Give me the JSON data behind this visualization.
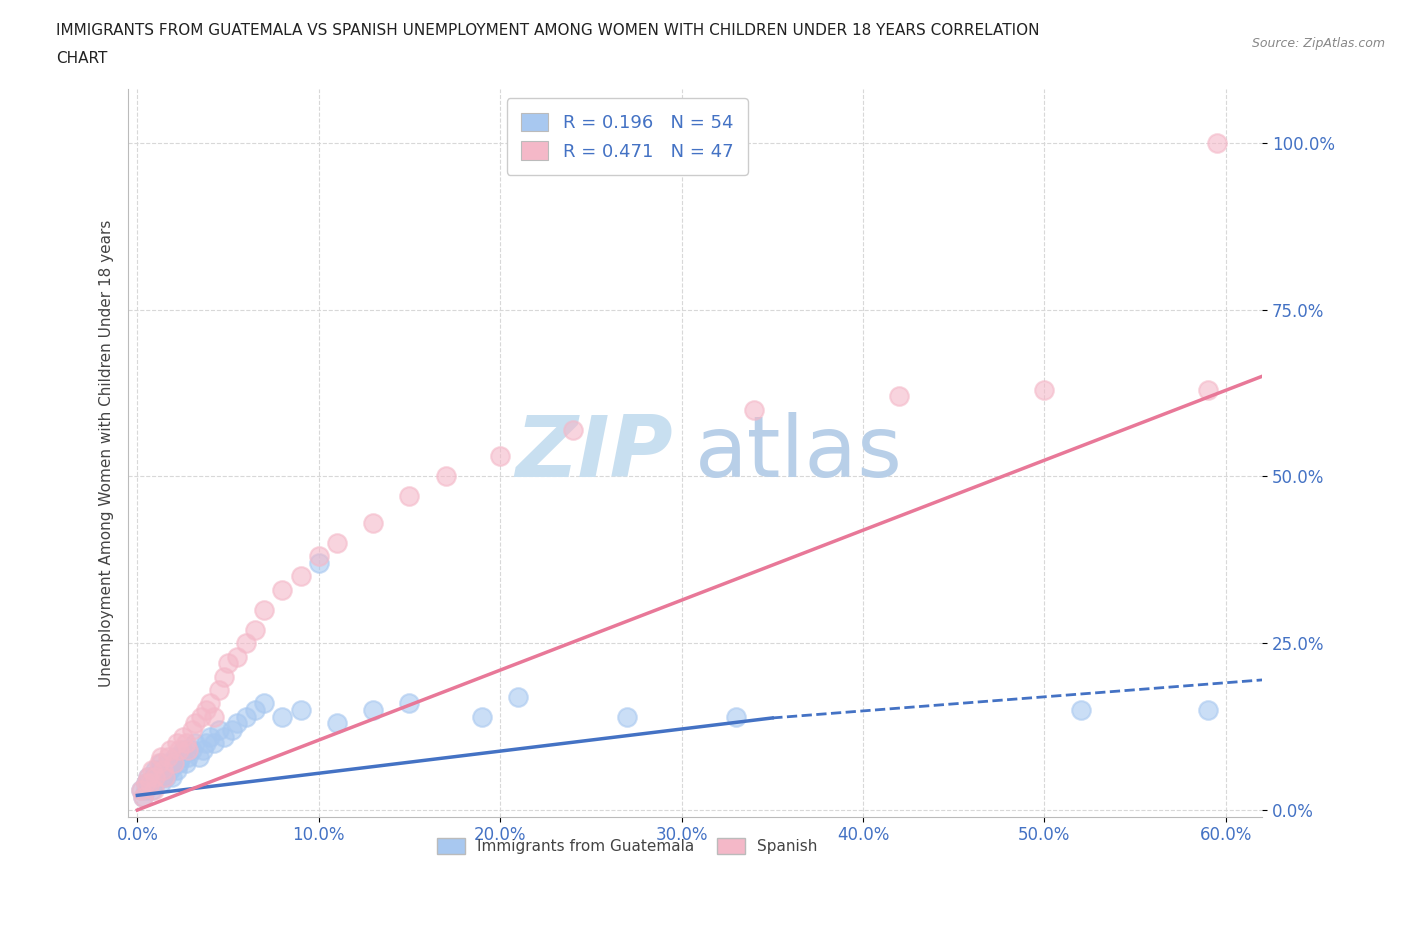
{
  "title_line1": "IMMIGRANTS FROM GUATEMALA VS SPANISH UNEMPLOYMENT AMONG WOMEN WITH CHILDREN UNDER 18 YEARS CORRELATION",
  "title_line2": "CHART",
  "source": "Source: ZipAtlas.com",
  "ylabel": "Unemployment Among Women with Children Under 18 years",
  "xlim": [
    -0.005,
    0.62
  ],
  "ylim": [
    -0.01,
    1.08
  ],
  "xtick_labels": [
    "0.0%",
    "10.0%",
    "20.0%",
    "30.0%",
    "40.0%",
    "50.0%",
    "60.0%"
  ],
  "xtick_vals": [
    0.0,
    0.1,
    0.2,
    0.3,
    0.4,
    0.5,
    0.6
  ],
  "ytick_labels": [
    "0.0%",
    "25.0%",
    "50.0%",
    "75.0%",
    "100.0%"
  ],
  "ytick_vals": [
    0.0,
    0.25,
    0.5,
    0.75,
    1.0
  ],
  "color_blue": "#a8c8f0",
  "color_pink": "#f4b8c8",
  "color_blue_line": "#4472c4",
  "color_pink_line": "#e87898",
  "legend_blue_label": "R = 0.196   N = 54",
  "legend_pink_label": "R = 0.471   N = 47",
  "watermark_zip": "ZIP",
  "watermark_atlas": "atlas",
  "watermark_color_zip": "#c8dff0",
  "watermark_color_atlas": "#b8cfe8",
  "background_color": "#ffffff",
  "grid_color": "#d8d8d8",
  "title_color": "#222222",
  "axis_label_color": "#444444",
  "tick_label_color": "#4472c4",
  "scatter_blue_x": [
    0.002,
    0.003,
    0.005,
    0.005,
    0.006,
    0.007,
    0.008,
    0.009,
    0.01,
    0.01,
    0.011,
    0.012,
    0.013,
    0.013,
    0.014,
    0.015,
    0.016,
    0.017,
    0.018,
    0.019,
    0.02,
    0.021,
    0.022,
    0.023,
    0.024,
    0.025,
    0.027,
    0.028,
    0.03,
    0.032,
    0.034,
    0.036,
    0.038,
    0.04,
    0.042,
    0.045,
    0.048,
    0.052,
    0.055,
    0.06,
    0.065,
    0.07,
    0.08,
    0.09,
    0.1,
    0.11,
    0.13,
    0.15,
    0.19,
    0.21,
    0.27,
    0.33,
    0.52,
    0.59
  ],
  "scatter_blue_y": [
    0.03,
    0.02,
    0.04,
    0.03,
    0.05,
    0.04,
    0.03,
    0.05,
    0.06,
    0.04,
    0.05,
    0.06,
    0.07,
    0.04,
    0.05,
    0.06,
    0.05,
    0.07,
    0.06,
    0.05,
    0.07,
    0.08,
    0.06,
    0.07,
    0.08,
    0.09,
    0.07,
    0.08,
    0.09,
    0.1,
    0.08,
    0.09,
    0.1,
    0.11,
    0.1,
    0.12,
    0.11,
    0.12,
    0.13,
    0.14,
    0.15,
    0.16,
    0.14,
    0.15,
    0.37,
    0.13,
    0.15,
    0.16,
    0.14,
    0.17,
    0.14,
    0.14,
    0.15,
    0.15
  ],
  "scatter_pink_x": [
    0.002,
    0.003,
    0.005,
    0.006,
    0.007,
    0.008,
    0.009,
    0.01,
    0.012,
    0.013,
    0.014,
    0.015,
    0.017,
    0.018,
    0.02,
    0.022,
    0.023,
    0.025,
    0.027,
    0.028,
    0.03,
    0.032,
    0.035,
    0.038,
    0.04,
    0.042,
    0.045,
    0.048,
    0.05,
    0.055,
    0.06,
    0.065,
    0.07,
    0.08,
    0.09,
    0.1,
    0.11,
    0.13,
    0.15,
    0.17,
    0.2,
    0.24,
    0.34,
    0.42,
    0.5,
    0.59,
    0.595
  ],
  "scatter_pink_y": [
    0.03,
    0.02,
    0.04,
    0.05,
    0.04,
    0.06,
    0.03,
    0.05,
    0.07,
    0.08,
    0.06,
    0.05,
    0.08,
    0.09,
    0.07,
    0.1,
    0.09,
    0.11,
    0.1,
    0.09,
    0.12,
    0.13,
    0.14,
    0.15,
    0.16,
    0.14,
    0.18,
    0.2,
    0.22,
    0.23,
    0.25,
    0.27,
    0.3,
    0.33,
    0.35,
    0.38,
    0.4,
    0.43,
    0.47,
    0.5,
    0.53,
    0.57,
    0.6,
    0.62,
    0.63,
    0.63,
    1.0
  ],
  "trend_blue_x0": 0.0,
  "trend_blue_y0": 0.022,
  "trend_blue_x1": 0.35,
  "trend_blue_y1": 0.138,
  "trend_blue_dash_x0": 0.35,
  "trend_blue_dash_y0": 0.138,
  "trend_blue_dash_x1": 0.62,
  "trend_blue_dash_y1": 0.195,
  "trend_pink_x0": 0.0,
  "trend_pink_y0": 0.0,
  "trend_pink_x1": 0.62,
  "trend_pink_y1": 0.65
}
